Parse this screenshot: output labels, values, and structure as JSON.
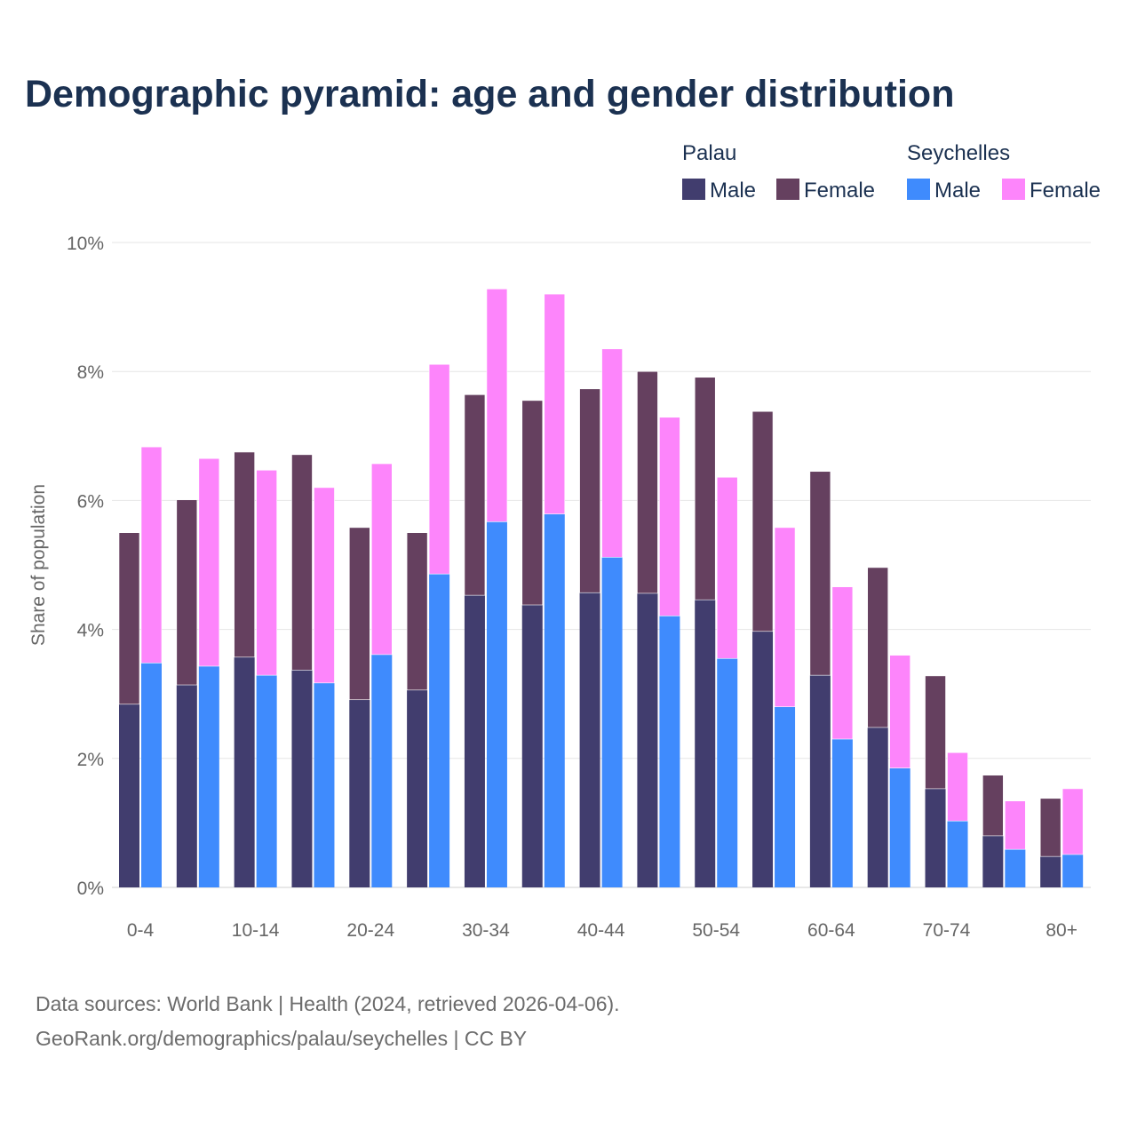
{
  "title": "Demographic pyramid: age and gender distribution",
  "sources": {
    "line1": "Data sources: World Bank | Health (2024, retrieved 2026-04-06).",
    "line2": "GeoRank.org/demographics/palau/seychelles | CC BY"
  },
  "colors": {
    "palau_male": "#413d6e",
    "palau_female": "#65405f",
    "sey_male": "#3f8bfd",
    "sey_female": "#fd85fb",
    "grid": "#e6e6e6",
    "axis_text": "#666666",
    "legend_text": "#1b3151"
  },
  "chart_data": {
    "type": "bar",
    "stacked": true,
    "title": "Demographic pyramid: age and gender distribution",
    "xlabel": "",
    "ylabel": "Share of population",
    "ylim": [
      0,
      10
    ],
    "yticks": [
      0,
      2,
      4,
      6,
      8,
      10
    ],
    "ytick_labels": [
      "0%",
      "2%",
      "4%",
      "6%",
      "8%",
      "10%"
    ],
    "grid": true,
    "legend_placement": "top-right",
    "legend": {
      "groups": [
        {
          "name": "Palau",
          "entries": [
            "Male",
            "Female"
          ]
        },
        {
          "name": "Seychelles",
          "entries": [
            "Male",
            "Female"
          ]
        }
      ]
    },
    "categories": [
      "0-4",
      "5-9",
      "10-14",
      "15-19",
      "20-24",
      "25-29",
      "30-34",
      "35-39",
      "40-44",
      "45-49",
      "50-54",
      "55-59",
      "60-64",
      "65-69",
      "70-74",
      "75-79",
      "80+"
    ],
    "xtick_labels_shown": [
      "0-4",
      "10-14",
      "20-24",
      "30-34",
      "40-44",
      "50-54",
      "60-64",
      "70-74",
      "80+"
    ],
    "series": [
      {
        "name": "Palau Male",
        "country": "Palau",
        "stack": "Palau",
        "values": [
          2.84,
          3.14,
          3.57,
          3.37,
          2.91,
          3.06,
          4.53,
          4.38,
          4.57,
          4.56,
          4.46,
          3.97,
          3.29,
          2.48,
          1.53,
          0.8,
          0.48
        ]
      },
      {
        "name": "Palau Female",
        "country": "Palau",
        "stack": "Palau",
        "values": [
          2.66,
          2.87,
          3.18,
          3.34,
          2.67,
          2.44,
          3.11,
          3.17,
          3.16,
          3.44,
          3.45,
          3.41,
          3.16,
          2.48,
          1.75,
          0.94,
          0.9
        ]
      },
      {
        "name": "Seychelles Male",
        "country": "Seychelles",
        "stack": "Seychelles",
        "values": [
          3.48,
          3.43,
          3.29,
          3.17,
          3.61,
          4.86,
          5.67,
          5.79,
          5.12,
          4.21,
          3.55,
          2.8,
          2.3,
          1.85,
          1.03,
          0.59,
          0.51
        ]
      },
      {
        "name": "Seychelles Female",
        "country": "Seychelles",
        "stack": "Seychelles",
        "values": [
          3.35,
          3.22,
          3.18,
          3.03,
          2.96,
          3.25,
          3.61,
          3.41,
          3.23,
          3.08,
          2.81,
          2.78,
          2.36,
          1.75,
          1.06,
          0.75,
          1.02
        ]
      }
    ]
  }
}
